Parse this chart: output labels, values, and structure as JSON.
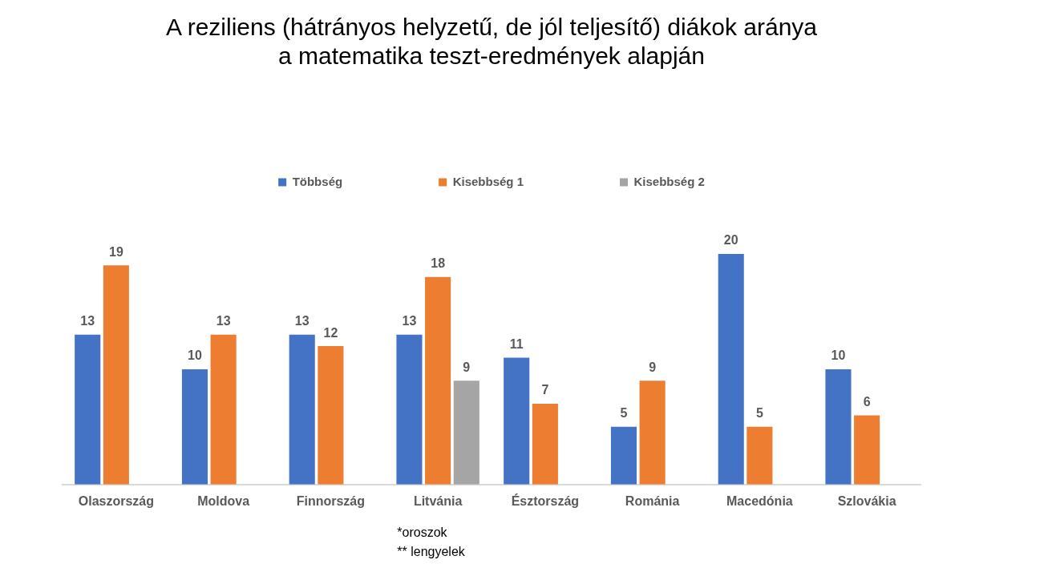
{
  "chart_data": {
    "type": "bar",
    "title": "A reziliens (hátrányos helyzetű, de jól teljesítő) diákok aránya a matematika teszt-eredmények alapján",
    "categories": [
      "Olaszország",
      "Moldova",
      "Finnország",
      "Litvánia",
      "Észtország",
      "Románia",
      "Macedónia",
      "Szlovákia"
    ],
    "series": [
      {
        "name": "Többség",
        "color": "#4472c4",
        "values": [
          13,
          10,
          13,
          13,
          11,
          5,
          20,
          10
        ]
      },
      {
        "name": "Kisebbség 1",
        "color": "#ed7d31",
        "values": [
          19,
          13,
          12,
          18,
          7,
          9,
          5,
          6
        ]
      },
      {
        "name": "Kisebbség 2",
        "color": "#a5a5a5",
        "values": [
          null,
          null,
          null,
          9,
          null,
          null,
          null,
          null
        ]
      }
    ],
    "data_labels": true,
    "legend": "top",
    "grid": false,
    "tick_labels": "x",
    "annotations": [
      "*oroszok",
      "** lengyelek"
    ]
  }
}
